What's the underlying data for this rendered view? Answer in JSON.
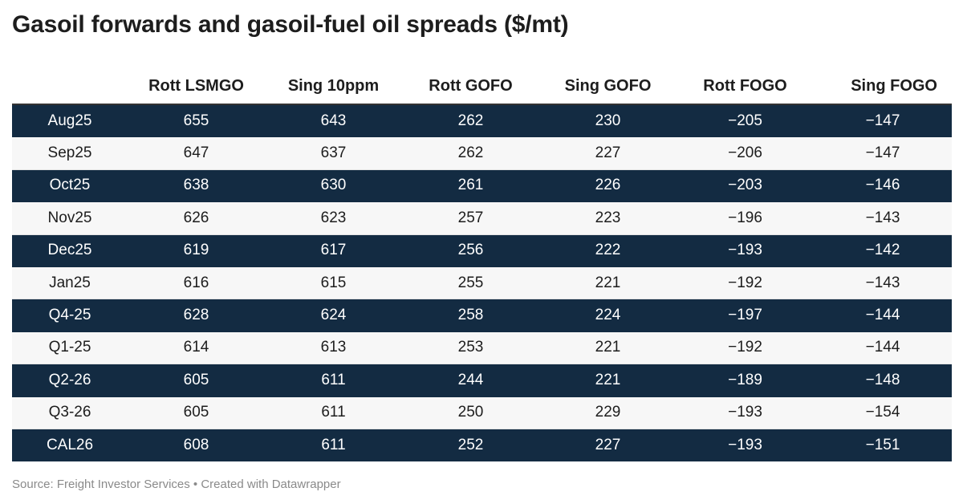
{
  "title": "Gasoil forwards and gasoil-fuel oil spreads ($/mt)",
  "source_note": "Source: Freight Investor Services • Created with Datawrapper",
  "colors": {
    "dark_row": "#132b42",
    "light_row": "#f7f7f7",
    "text": "#1d1d1d"
  },
  "chart_data": {
    "type": "table",
    "title": "Gasoil forwards and gasoil-fuel oil spreads ($/mt)",
    "columns": [
      "",
      "Rott LSMGO",
      "Sing 10ppm",
      "Rott GOFO",
      "Sing GOFO",
      "Rott FOGO",
      "Sing FOGO"
    ],
    "rows": [
      [
        "Aug25",
        "655",
        "643",
        "262",
        "230",
        "−205",
        "−147"
      ],
      [
        "Sep25",
        "647",
        "637",
        "262",
        "227",
        "−206",
        "−147"
      ],
      [
        "Oct25",
        "638",
        "630",
        "261",
        "226",
        "−203",
        "−146"
      ],
      [
        "Nov25",
        "626",
        "623",
        "257",
        "223",
        "−196",
        "−143"
      ],
      [
        "Dec25",
        "619",
        "617",
        "256",
        "222",
        "−193",
        "−142"
      ],
      [
        "Jan25",
        "616",
        "615",
        "255",
        "221",
        "−192",
        "−143"
      ],
      [
        "Q4-25",
        "628",
        "624",
        "258",
        "224",
        "−197",
        "−144"
      ],
      [
        "Q1-25",
        "614",
        "613",
        "253",
        "221",
        "−192",
        "−144"
      ],
      [
        "Q2-26",
        "605",
        "611",
        "244",
        "221",
        "−189",
        "−148"
      ],
      [
        "Q3-26",
        "605",
        "611",
        "250",
        "229",
        "−193",
        "−154"
      ],
      [
        "CAL26",
        "608",
        "611",
        "252",
        "227",
        "−193",
        "−151"
      ]
    ]
  }
}
